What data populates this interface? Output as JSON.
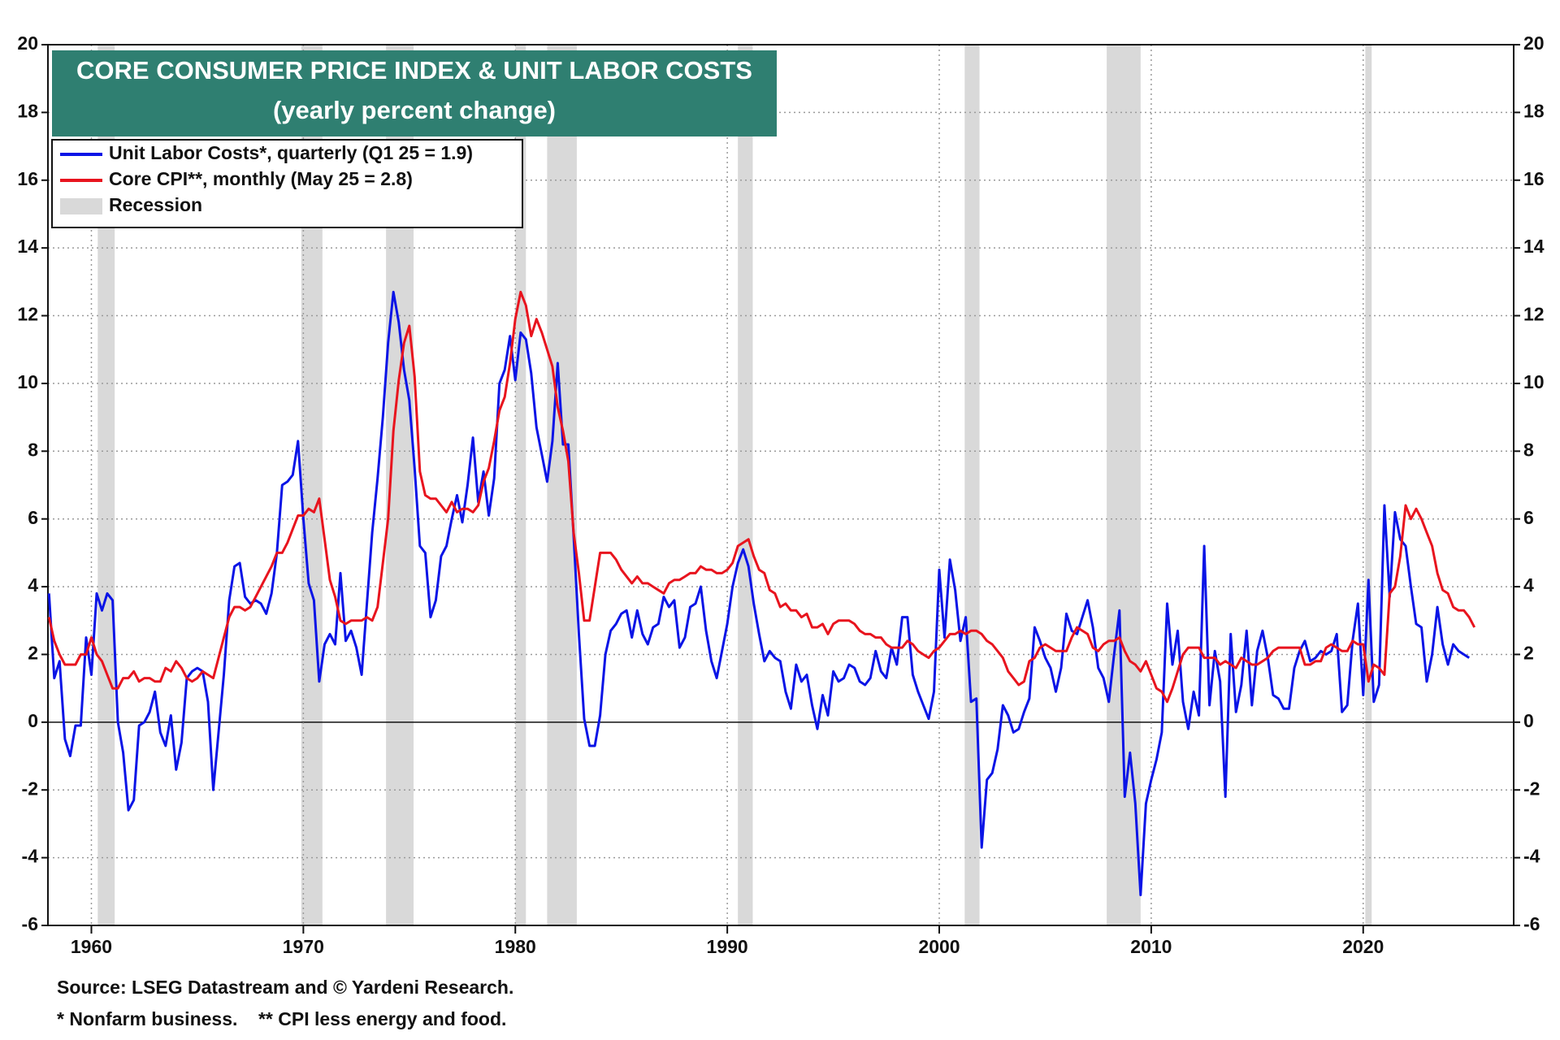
{
  "chart_data": {
    "type": "line",
    "title": "CORE CONSUMER PRICE INDEX & UNIT LABOR COSTS",
    "subtitle": "(yearly percent change)",
    "footnotes": [
      "Source: LSEG Datastream and © Yardeni Research.",
      "* Nonfarm business.    ** CPI less energy and food."
    ],
    "x": [
      1958,
      1958.25,
      1958.5,
      1958.75,
      1959,
      1959.25,
      1959.5,
      1959.75,
      1960,
      1960.25,
      1960.5,
      1960.75,
      1961,
      1961.25,
      1961.5,
      1961.75,
      1962,
      1962.25,
      1962.5,
      1962.75,
      1963,
      1963.25,
      1963.5,
      1963.75,
      1964,
      1964.25,
      1964.5,
      1964.75,
      1965,
      1965.25,
      1965.5,
      1965.75,
      1966,
      1966.25,
      1966.5,
      1966.75,
      1967,
      1967.25,
      1967.5,
      1967.75,
      1968,
      1968.25,
      1968.5,
      1968.75,
      1969,
      1969.25,
      1969.5,
      1969.75,
      1970,
      1970.25,
      1970.5,
      1970.75,
      1971,
      1971.25,
      1971.5,
      1971.75,
      1972,
      1972.25,
      1972.5,
      1972.75,
      1973,
      1973.25,
      1973.5,
      1973.75,
      1974,
      1974.25,
      1974.5,
      1974.75,
      1975,
      1975.25,
      1975.5,
      1975.75,
      1976,
      1976.25,
      1976.5,
      1976.75,
      1977,
      1977.25,
      1977.5,
      1977.75,
      1978,
      1978.25,
      1978.5,
      1978.75,
      1979,
      1979.25,
      1979.5,
      1979.75,
      1980,
      1980.25,
      1980.5,
      1980.75,
      1981,
      1981.25,
      1981.5,
      1981.75,
      1982,
      1982.25,
      1982.5,
      1982.75,
      1983,
      1983.25,
      1983.5,
      1983.75,
      1984,
      1984.25,
      1984.5,
      1984.75,
      1985,
      1985.25,
      1985.5,
      1985.75,
      1986,
      1986.25,
      1986.5,
      1986.75,
      1987,
      1987.25,
      1987.5,
      1987.75,
      1988,
      1988.25,
      1988.5,
      1988.75,
      1989,
      1989.25,
      1989.5,
      1989.75,
      1990,
      1990.25,
      1990.5,
      1990.75,
      1991,
      1991.25,
      1991.5,
      1991.75,
      1992,
      1992.25,
      1992.5,
      1992.75,
      1993,
      1993.25,
      1993.5,
      1993.75,
      1994,
      1994.25,
      1994.5,
      1994.75,
      1995,
      1995.25,
      1995.5,
      1995.75,
      1996,
      1996.25,
      1996.5,
      1996.75,
      1997,
      1997.25,
      1997.5,
      1997.75,
      1998,
      1998.25,
      1998.5,
      1998.75,
      1999,
      1999.25,
      1999.5,
      1999.75,
      2000,
      2000.25,
      2000.5,
      2000.75,
      2001,
      2001.25,
      2001.5,
      2001.75,
      2002,
      2002.25,
      2002.5,
      2002.75,
      2003,
      2003.25,
      2003.5,
      2003.75,
      2004,
      2004.25,
      2004.5,
      2004.75,
      2005,
      2005.25,
      2005.5,
      2005.75,
      2006,
      2006.25,
      2006.5,
      2006.75,
      2007,
      2007.25,
      2007.5,
      2007.75,
      2008,
      2008.25,
      2008.5,
      2008.75,
      2009,
      2009.25,
      2009.5,
      2009.75,
      2010,
      2010.25,
      2010.5,
      2010.75,
      2011,
      2011.25,
      2011.5,
      2011.75,
      2012,
      2012.25,
      2012.5,
      2012.75,
      2013,
      2013.25,
      2013.5,
      2013.75,
      2014,
      2014.25,
      2014.5,
      2014.75,
      2015,
      2015.25,
      2015.5,
      2015.75,
      2016,
      2016.25,
      2016.5,
      2016.75,
      2017,
      2017.25,
      2017.5,
      2017.75,
      2018,
      2018.25,
      2018.5,
      2018.75,
      2019,
      2019.25,
      2019.5,
      2019.75,
      2020,
      2020.25,
      2020.5,
      2020.75,
      2021,
      2021.25,
      2021.5,
      2021.75,
      2022,
      2022.25,
      2022.5,
      2022.75,
      2023,
      2023.25,
      2023.5,
      2023.75,
      2024,
      2024.25,
      2024.5,
      2024.75,
      2025,
      2025.25
    ],
    "series": [
      {
        "name": "Unit Labor Costs*, quarterly (Q1 25 = 1.9)",
        "color": "#0a14e6",
        "values": [
          3.8,
          1.3,
          1.8,
          -0.5,
          -1.0,
          -0.1,
          -0.1,
          2.5,
          1.4,
          3.8,
          3.3,
          3.8,
          3.6,
          0.0,
          -0.9,
          -2.6,
          -2.3,
          -0.1,
          0.0,
          0.3,
          0.9,
          -0.3,
          -0.7,
          0.2,
          -1.4,
          -0.6,
          1.3,
          1.5,
          1.6,
          1.5,
          0.6,
          -2.0,
          -0.3,
          1.4,
          3.6,
          4.6,
          4.7,
          3.7,
          3.5,
          3.6,
          3.5,
          3.2,
          3.8,
          5.0,
          7.0,
          7.1,
          7.3,
          8.3,
          6.0,
          4.1,
          3.6,
          1.2,
          2.3,
          2.6,
          2.3,
          4.4,
          2.4,
          2.7,
          2.2,
          1.4,
          3.5,
          5.6,
          7.2,
          9.0,
          11.2,
          12.7,
          11.8,
          10.4,
          9.5,
          7.5,
          5.2,
          5.0,
          3.1,
          3.6,
          4.9,
          5.2,
          6.0,
          6.7,
          5.9,
          7.0,
          8.4,
          6.5,
          7.4,
          6.1,
          7.2,
          10.0,
          10.4,
          11.4,
          10.1,
          11.5,
          11.3,
          10.3,
          8.7,
          7.9,
          7.1,
          8.3,
          10.6,
          8.2,
          8.2,
          5.5,
          2.6,
          0.1,
          -0.7,
          -0.7,
          0.2,
          2.0,
          2.7,
          2.9,
          3.2,
          3.3,
          2.5,
          3.3,
          2.6,
          2.3,
          2.8,
          2.9,
          3.7,
          3.4,
          3.6,
          2.2,
          2.5,
          3.4,
          3.5,
          4.0,
          2.7,
          1.8,
          1.3,
          2.1,
          2.9,
          4.0,
          4.7,
          5.1,
          4.6,
          3.5,
          2.6,
          1.8,
          2.1,
          1.9,
          1.8,
          0.9,
          0.4,
          1.7,
          1.2,
          1.4,
          0.5,
          -0.2,
          0.8,
          0.2,
          1.5,
          1.2,
          1.3,
          1.7,
          1.6,
          1.2,
          1.1,
          1.3,
          2.1,
          1.5,
          1.3,
          2.2,
          1.7,
          3.1,
          3.1,
          1.4,
          0.9,
          0.5,
          0.1,
          0.9,
          4.5,
          2.5,
          4.8,
          3.9,
          2.4,
          3.1,
          0.6,
          0.7,
          -3.7,
          -1.7,
          -1.5,
          -0.8,
          0.5,
          0.2,
          -0.3,
          -0.2,
          0.3,
          0.7,
          2.8,
          2.4,
          1.9,
          1.6,
          0.9,
          1.6,
          3.2,
          2.7,
          2.6,
          3.1,
          3.6,
          2.8,
          1.6,
          1.3,
          0.6,
          2.0,
          3.3,
          -2.2,
          -0.9,
          -2.4,
          -5.1,
          -2.4,
          -1.7,
          -1.1,
          -0.3,
          3.5,
          1.7,
          2.7,
          0.6,
          -0.2,
          0.9,
          0.2,
          5.2,
          0.5,
          2.1,
          1.2,
          -2.2,
          2.6,
          0.3,
          1.1,
          2.7,
          0.5,
          2.1,
          2.7,
          1.9,
          0.8,
          0.7,
          0.4,
          0.4,
          1.6,
          2.1,
          2.4,
          1.8,
          1.9,
          2.1,
          2.0,
          2.1,
          2.6,
          0.3,
          0.5,
          2.4,
          3.5,
          0.8,
          4.2,
          0.6,
          1.1,
          6.4,
          3.7,
          6.2,
          5.4,
          5.2,
          4.0,
          2.9,
          2.8,
          1.2,
          2.0,
          3.4,
          2.3,
          1.7,
          2.3,
          2.1,
          2.0,
          1.9,
          null
        ]
      },
      {
        "name": "Core CPI**, monthly (May 25 = 2.8)",
        "color": "#e8141e",
        "values": [
          3.1,
          2.4,
          2.0,
          1.7,
          1.7,
          1.7,
          2.0,
          2.0,
          2.5,
          2.0,
          1.8,
          1.4,
          1.0,
          1.0,
          1.3,
          1.3,
          1.5,
          1.2,
          1.3,
          1.3,
          1.2,
          1.2,
          1.6,
          1.5,
          1.8,
          1.6,
          1.3,
          1.2,
          1.3,
          1.5,
          1.4,
          1.3,
          1.9,
          2.5,
          3.1,
          3.4,
          3.4,
          3.3,
          3.4,
          3.7,
          4.0,
          4.3,
          4.6,
          5.0,
          5.0,
          5.3,
          5.7,
          6.1,
          6.1,
          6.3,
          6.2,
          6.6,
          5.4,
          4.2,
          3.7,
          3.0,
          2.9,
          3.0,
          3.0,
          3.0,
          3.1,
          3.0,
          3.4,
          4.7,
          6.0,
          8.6,
          10.1,
          11.2,
          11.7,
          10.2,
          7.4,
          6.7,
          6.6,
          6.6,
          6.4,
          6.2,
          6.5,
          6.2,
          6.3,
          6.3,
          6.2,
          6.4,
          7.1,
          7.5,
          8.3,
          9.2,
          9.6,
          10.6,
          11.9,
          12.7,
          12.3,
          11.4,
          11.9,
          11.5,
          11.0,
          10.5,
          9.3,
          8.6,
          7.7,
          5.6,
          4.4,
          3.0,
          3.0,
          4.0,
          5.0,
          5.0,
          5.0,
          4.8,
          4.5,
          4.3,
          4.1,
          4.3,
          4.1,
          4.1,
          4.0,
          3.9,
          3.8,
          4.1,
          4.2,
          4.2,
          4.3,
          4.4,
          4.4,
          4.6,
          4.5,
          4.5,
          4.4,
          4.4,
          4.5,
          4.7,
          5.2,
          5.3,
          5.4,
          4.9,
          4.5,
          4.4,
          3.9,
          3.8,
          3.4,
          3.5,
          3.3,
          3.3,
          3.1,
          3.2,
          2.8,
          2.8,
          2.9,
          2.6,
          2.9,
          3.0,
          3.0,
          3.0,
          2.9,
          2.7,
          2.6,
          2.6,
          2.5,
          2.5,
          2.3,
          2.2,
          2.2,
          2.2,
          2.4,
          2.3,
          2.1,
          2.0,
          1.9,
          2.1,
          2.2,
          2.4,
          2.6,
          2.6,
          2.7,
          2.6,
          2.7,
          2.7,
          2.6,
          2.4,
          2.3,
          2.1,
          1.9,
          1.5,
          1.3,
          1.1,
          1.2,
          1.8,
          1.9,
          2.2,
          2.3,
          2.2,
          2.1,
          2.1,
          2.1,
          2.5,
          2.8,
          2.7,
          2.6,
          2.2,
          2.1,
          2.3,
          2.4,
          2.4,
          2.5,
          2.1,
          1.8,
          1.7,
          1.5,
          1.8,
          1.4,
          1.0,
          0.9,
          0.6,
          1.0,
          1.5,
          2.0,
          2.2,
          2.2,
          2.2,
          1.9,
          1.9,
          1.9,
          1.7,
          1.8,
          1.7,
          1.6,
          1.9,
          1.8,
          1.7,
          1.7,
          1.8,
          1.9,
          2.1,
          2.2,
          2.2,
          2.2,
          2.2,
          2.2,
          1.7,
          1.7,
          1.8,
          1.8,
          2.2,
          2.3,
          2.2,
          2.1,
          2.1,
          2.4,
          2.3,
          2.3,
          1.2,
          1.7,
          1.6,
          1.4,
          3.8,
          4.0,
          4.9,
          6.4,
          6.0,
          6.3,
          6.0,
          5.6,
          5.2,
          4.4,
          3.9,
          3.8,
          3.4,
          3.3,
          3.3,
          3.1,
          2.8
        ]
      }
    ],
    "recessions": {
      "name": "Recession",
      "color": "#d9d9d9",
      "periods": [
        [
          1960.3,
          1961.1
        ],
        [
          1969.9,
          1970.9
        ],
        [
          1973.9,
          1975.2
        ],
        [
          1980.0,
          1980.5
        ],
        [
          1981.5,
          1982.9
        ],
        [
          1990.5,
          1991.2
        ],
        [
          2001.2,
          2001.9
        ],
        [
          2007.9,
          2009.5
        ],
        [
          2020.1,
          2020.4
        ]
      ]
    },
    "xlim": [
      1957.95,
      2027.1
    ],
    "xticks": [
      1960,
      1970,
      1980,
      1990,
      2000,
      2010,
      2020
    ],
    "ylim": [
      -6,
      20
    ],
    "yticks": [
      -6,
      -4,
      -2,
      0,
      2,
      4,
      6,
      8,
      10,
      12,
      14,
      16,
      18,
      20
    ],
    "y2lim": [
      -6,
      20
    ],
    "y2ticks": [
      -6,
      -4,
      -2,
      0,
      2,
      4,
      6,
      8,
      10,
      12,
      14,
      16,
      18,
      20
    ],
    "grid": true
  }
}
